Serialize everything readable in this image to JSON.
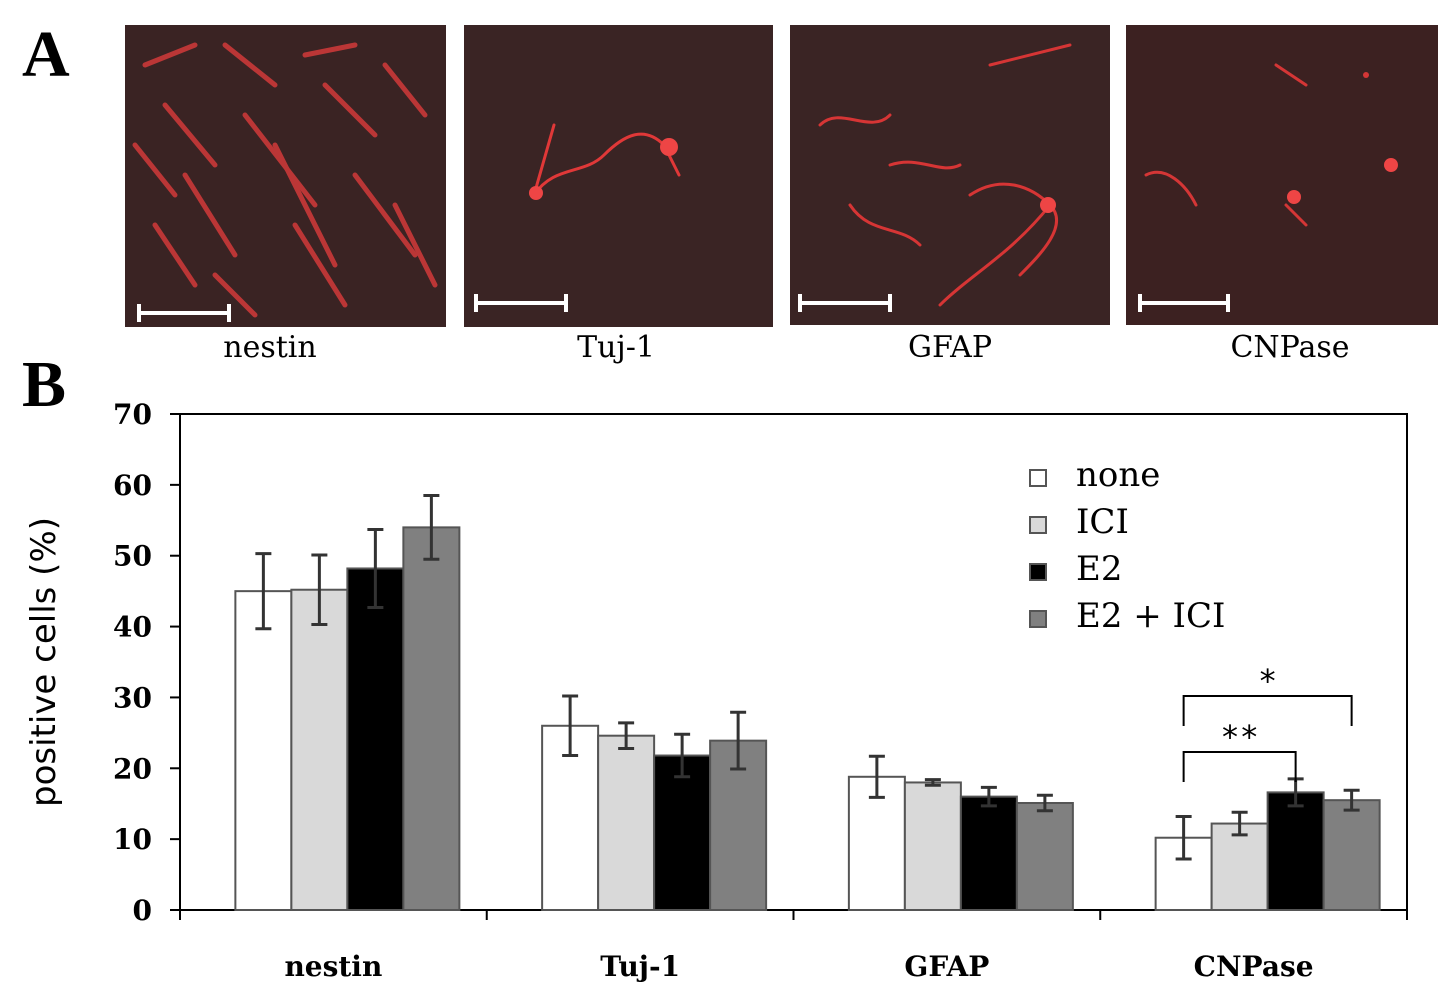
{
  "panels": {
    "a_label": "A",
    "b_label": "B"
  },
  "micrographs": [
    {
      "label": "nestin"
    },
    {
      "label": "Tuj-1"
    },
    {
      "label": "GFAP"
    },
    {
      "label": "CNPase"
    }
  ],
  "chart_data": {
    "type": "bar",
    "categories": [
      "nestin",
      "Tuj-1",
      "GFAP",
      "CNPase"
    ],
    "ylabel": "positive cells (%)",
    "ylim": [
      0,
      70
    ],
    "yticks": [
      0,
      10,
      20,
      30,
      40,
      50,
      60,
      70
    ],
    "series": [
      {
        "name": "none",
        "color": "#ffffff",
        "values": [
          45,
          26,
          18.8,
          10.2
        ],
        "errors": [
          5.3,
          4.2,
          2.9,
          3.0
        ]
      },
      {
        "name": "ICI",
        "color": "#d9d9d9",
        "values": [
          45.2,
          24.6,
          18.0,
          12.2
        ],
        "errors": [
          4.9,
          1.8,
          0.4,
          1.6
        ]
      },
      {
        "name": "E2",
        "color": "#000000",
        "values": [
          48.2,
          21.8,
          16.0,
          16.6
        ],
        "errors": [
          5.5,
          3.0,
          1.3,
          1.9
        ]
      },
      {
        "name": "E2 + ICI",
        "color": "#808080",
        "values": [
          54.0,
          23.9,
          15.1,
          15.5
        ],
        "errors": [
          4.5,
          4.0,
          1.1,
          1.4
        ]
      }
    ],
    "significance": [
      {
        "category": "CNPase",
        "from": "none",
        "to": "E2",
        "label": "**"
      },
      {
        "category": "CNPase",
        "from": "none",
        "to": "E2 + ICI",
        "label": "*"
      }
    ],
    "legend_position": "top-right"
  }
}
